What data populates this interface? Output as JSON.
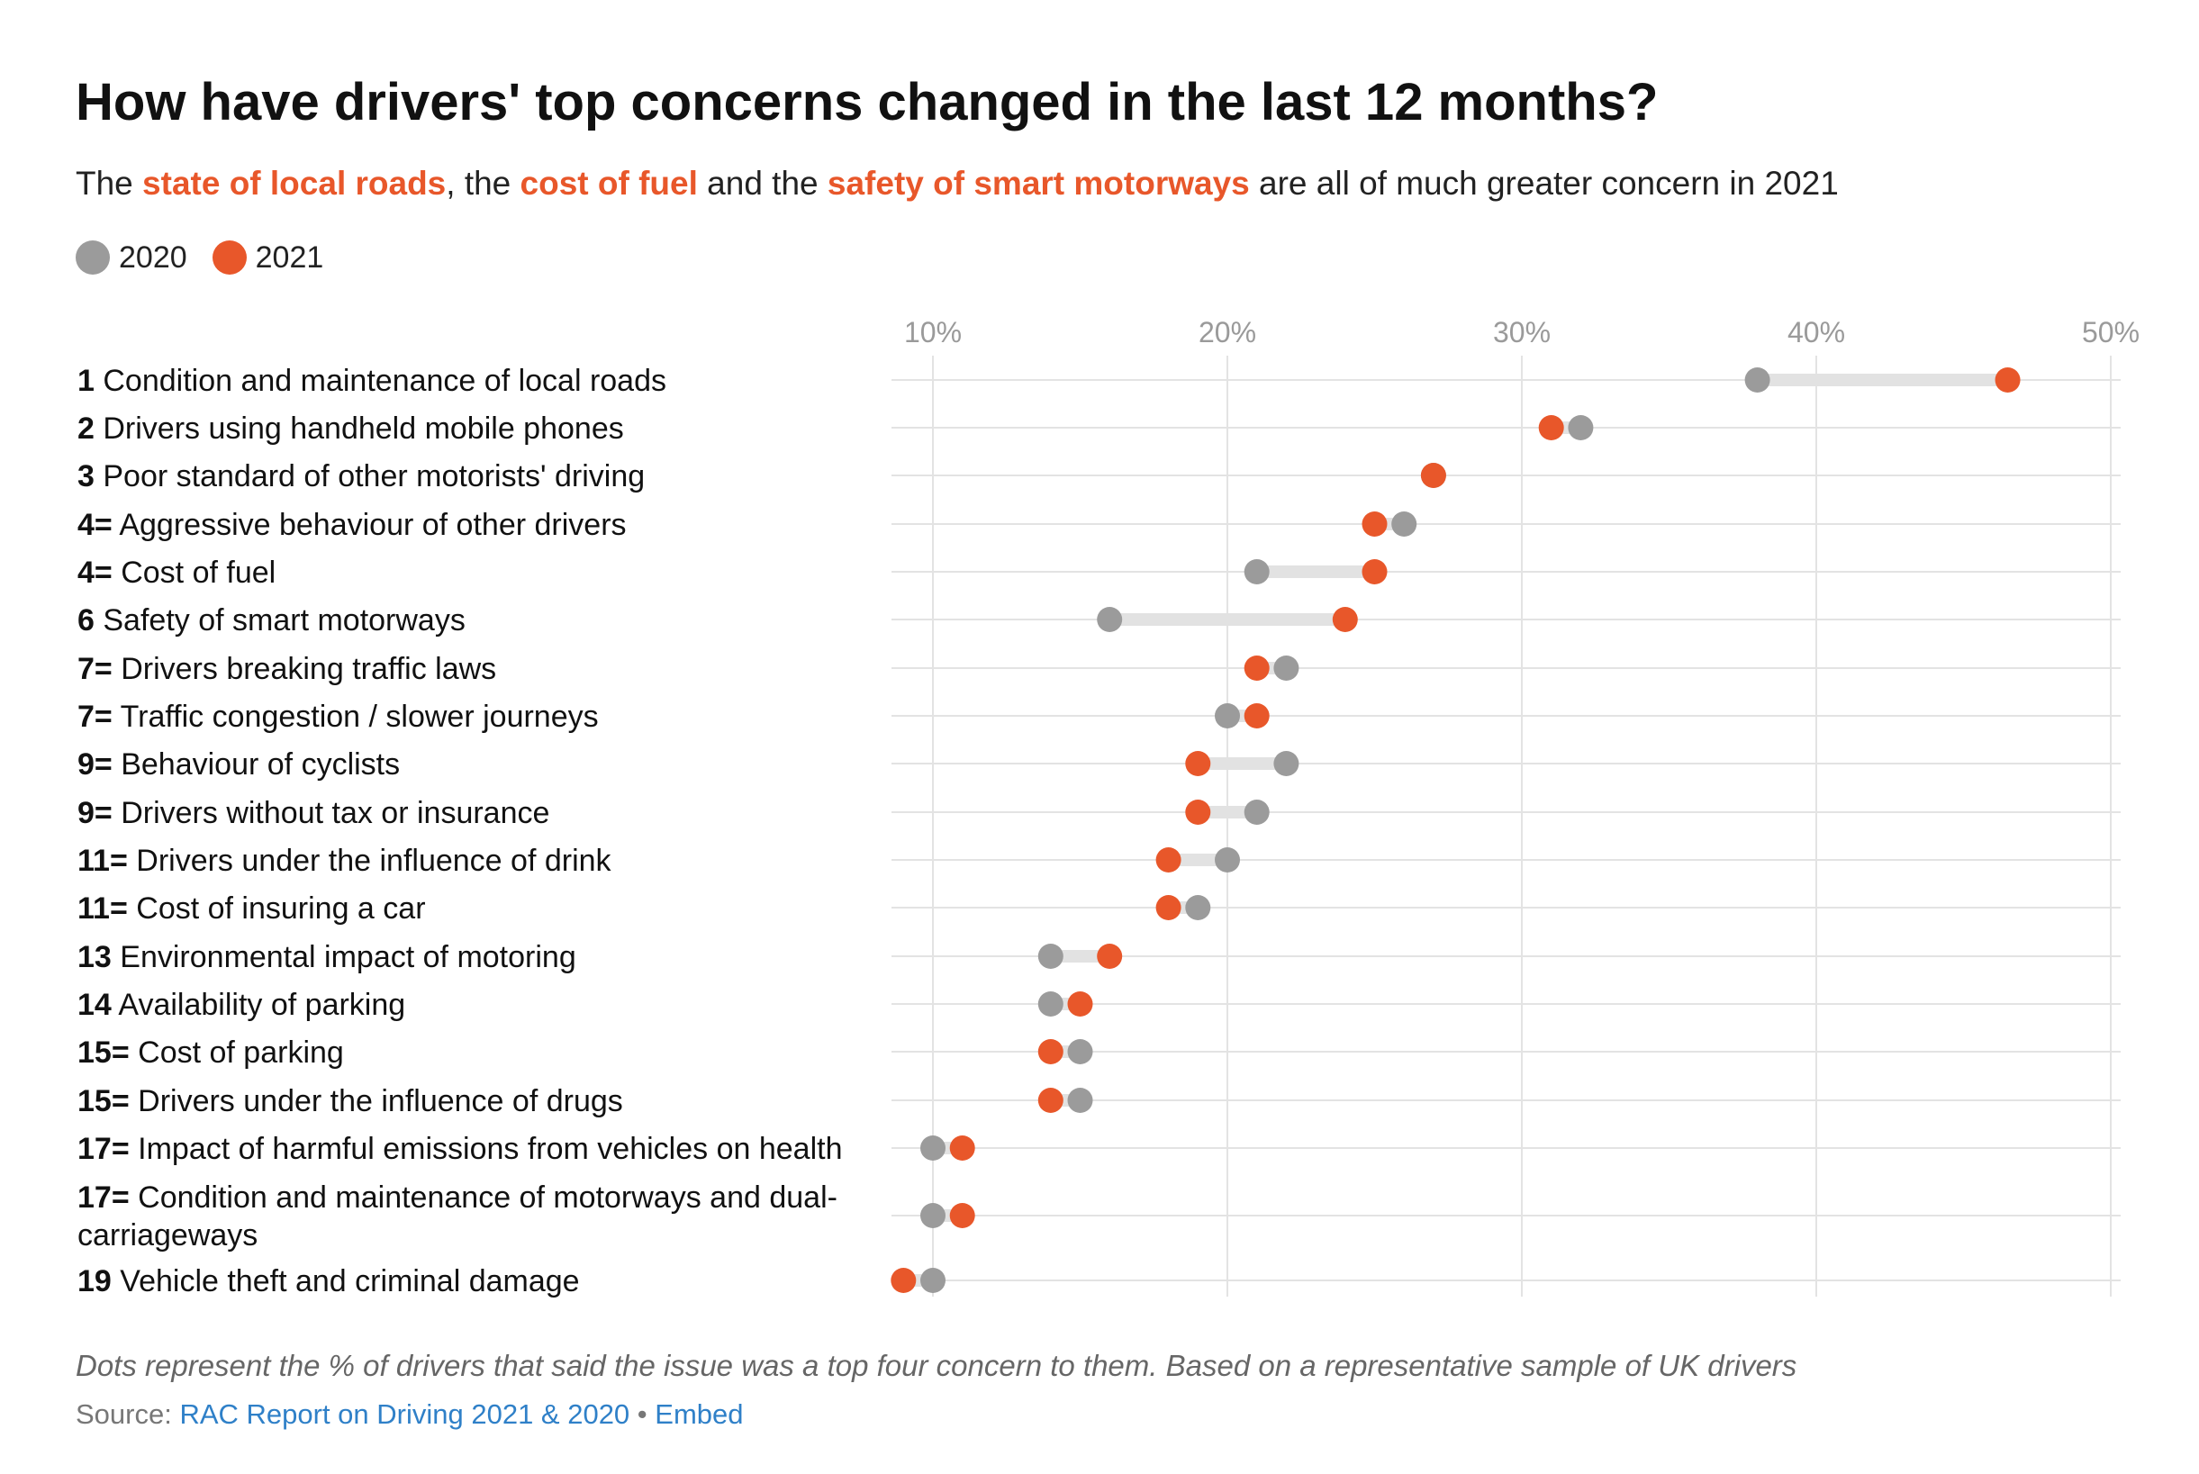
{
  "header": {
    "title": "How have drivers' top concerns changed in the last 12 months?",
    "subtitle_parts": {
      "p1": "The ",
      "h1": "state of local roads",
      "p2": ", the ",
      "h2": "cost of fuel",
      "p3": " and the ",
      "h3": "safety of smart motorways",
      "p4": " are all of much greater concern in 2021"
    }
  },
  "colors": {
    "y2020": "#9b9b9b",
    "y2021": "#e8572a",
    "grid": "#e3e3e3",
    "connector": "#e2e2e2",
    "highlight": "#e8572a"
  },
  "chart_data": {
    "type": "dot",
    "title": "How have drivers' top concerns changed in the last 12 months?",
    "xlim": [
      8.5,
      51
    ],
    "ticks": [
      10,
      20,
      30,
      40,
      50
    ],
    "tick_labels": [
      "10%",
      "20%",
      "30%",
      "40%",
      "50%"
    ],
    "legend": {
      "placement": "top-left",
      "labels": [
        "2020",
        "2021"
      ]
    },
    "series": [
      {
        "name": "2020",
        "color": "#9b9b9b"
      },
      {
        "name": "2021",
        "color": "#e8572a"
      }
    ],
    "rows": [
      {
        "rank": "1",
        "label": "Condition and maintenance of local roads",
        "v2020": 38,
        "v2021": 46.5
      },
      {
        "rank": "2",
        "label": "Drivers using handheld mobile phones",
        "v2020": 32,
        "v2021": 31
      },
      {
        "rank": "3",
        "label": "Poor standard of other motorists' driving",
        "v2020": 27,
        "v2021": 27
      },
      {
        "rank": "4=",
        "label": "Aggressive behaviour of other drivers",
        "v2020": 26,
        "v2021": 25
      },
      {
        "rank": "4=",
        "label": "Cost of fuel",
        "v2020": 21,
        "v2021": 25
      },
      {
        "rank": "6",
        "label": "Safety of smart motorways",
        "v2020": 16,
        "v2021": 24
      },
      {
        "rank": "7=",
        "label": "Drivers breaking traffic laws",
        "v2020": 22,
        "v2021": 21
      },
      {
        "rank": "7=",
        "label": "Traffic congestion / slower journeys",
        "v2020": 20,
        "v2021": 21
      },
      {
        "rank": "9=",
        "label": "Behaviour of cyclists",
        "v2020": 22,
        "v2021": 19
      },
      {
        "rank": "9=",
        "label": "Drivers without tax or insurance",
        "v2020": 21,
        "v2021": 19
      },
      {
        "rank": "11=",
        "label": "Drivers under the influence of drink",
        "v2020": 20,
        "v2021": 18
      },
      {
        "rank": "11=",
        "label": "Cost of insuring a car",
        "v2020": 19,
        "v2021": 18
      },
      {
        "rank": "13",
        "label": "Environmental impact of motoring",
        "v2020": 14,
        "v2021": 16
      },
      {
        "rank": "14",
        "label": "Availability of parking",
        "v2020": 14,
        "v2021": 15
      },
      {
        "rank": "15=",
        "label": "Cost of parking",
        "v2020": 15,
        "v2021": 14
      },
      {
        "rank": "15=",
        "label": "Drivers under the influence of drugs",
        "v2020": 15,
        "v2021": 14
      },
      {
        "rank": "17=",
        "label": "Impact of harmful emissions from vehicles on health",
        "v2020": 10,
        "v2021": 11
      },
      {
        "rank": "17=",
        "label": "Condition and maintenance of motorways and dual-carriageways",
        "v2020": 10,
        "v2021": 11
      },
      {
        "rank": "19",
        "label": "Vehicle theft and criminal damage",
        "v2020": 10,
        "v2021": 9
      }
    ]
  },
  "footer": {
    "note": "Dots represent the % of drivers that said the issue was a top four concern to them. Based on a representative sample of UK drivers",
    "source_prefix": "Source: ",
    "source_link": "RAC Report on Driving 2021 & 2020",
    "separator": " • ",
    "embed_link": "Embed"
  }
}
